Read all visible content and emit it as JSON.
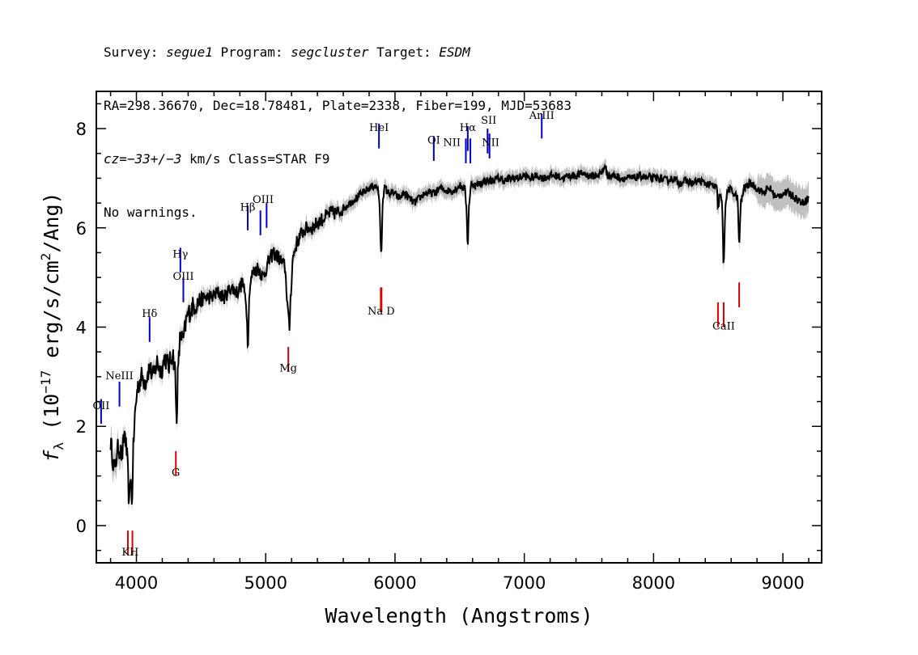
{
  "header": {
    "line1": {
      "survey_label": "Survey: ",
      "survey": "segue1",
      "program_label": " Program: ",
      "program": "segcluster",
      "target_label": " Target: ",
      "target": "ESDM"
    },
    "line2": "RA=298.36670, Dec=18.78481, Plate=2338, Fiber=199, MJD=53683",
    "line3": {
      "cz_label": "cz",
      "cz_value": "=−33+/−3",
      "rest": " km/s Class=STAR F9"
    },
    "line4": "No warnings."
  },
  "chart_data": {
    "type": "line",
    "xlabel": "Wavelength (Angstroms)",
    "ylabel_prefix": "f",
    "ylabel_sub": "λ",
    "ylabel_main": " (10",
    "ylabel_exp": "−17",
    "ylabel_mid": " erg/s/cm",
    "ylabel_exp2": "2",
    "ylabel_end": "/Ang)",
    "xlim": [
      3690,
      9300
    ],
    "ylim": [
      -0.75,
      8.75
    ],
    "x_ticks": [
      4000,
      5000,
      6000,
      7000,
      8000,
      9000
    ],
    "y_ticks": [
      0,
      2,
      4,
      6,
      8
    ],
    "x_minor_step": 200,
    "y_minor_step": 0.5,
    "colors": {
      "flux": "#000000",
      "error_band": "#c0c0c0",
      "emission_lines": "#0000cc",
      "absorption_lines": "#dd0000"
    },
    "series": [
      {
        "x": [
          3800,
          3830,
          3860,
          3890,
          3910,
          3930,
          3945,
          3955,
          3965,
          3975,
          3990,
          4010,
          4040,
          4070,
          4100,
          4130,
          4160,
          4190,
          4220,
          4250,
          4280,
          4300,
          4310,
          4320,
          4340,
          4360,
          4390,
          4430,
          4480,
          4530,
          4580,
          4630,
          4680,
          4730,
          4780,
          4820,
          4850,
          4862,
          4875,
          4900,
          4940,
          4980,
          5020,
          5060,
          5100,
          5150,
          5170,
          5183,
          5190,
          5210,
          5240,
          5280,
          5320,
          5360,
          5400,
          5450,
          5500,
          5550,
          5600,
          5650,
          5700,
          5750,
          5800,
          5840,
          5870,
          5885,
          5890,
          5896,
          5905,
          5920,
          5950,
          5990,
          6030,
          6070,
          6110,
          6150,
          6190,
          6230,
          6270,
          6310,
          6350,
          6400,
          6450,
          6500,
          6540,
          6555,
          6563,
          6570,
          6590,
          6620,
          6660,
          6700,
          6750,
          6800,
          6850,
          6900,
          6950,
          7000,
          7050,
          7100,
          7150,
          7200,
          7250,
          7300,
          7350,
          7400,
          7450,
          7500,
          7550,
          7600,
          7620,
          7650,
          7700,
          7750,
          7800,
          7850,
          7900,
          7950,
          8000,
          8050,
          8100,
          8150,
          8200,
          8250,
          8300,
          8350,
          8400,
          8450,
          8490,
          8498,
          8510,
          8530,
          8542,
          8555,
          8580,
          8620,
          8650,
          8662,
          8675,
          8700,
          8750,
          8800,
          8850,
          8900,
          8950,
          9000,
          9050,
          9100,
          9150,
          9200
        ],
        "y": [
          1.7,
          1.1,
          1.6,
          1.4,
          1.9,
          1.3,
          0.3,
          1.2,
          0.3,
          1.5,
          2.3,
          2.8,
          3.0,
          2.9,
          3.2,
          3.0,
          3.3,
          3.1,
          3.4,
          3.2,
          3.5,
          3.1,
          2.0,
          3.0,
          3.9,
          3.7,
          4.2,
          4.4,
          4.5,
          4.6,
          4.6,
          4.7,
          4.6,
          4.8,
          4.7,
          4.9,
          4.5,
          3.6,
          4.8,
          5.1,
          5.2,
          5.0,
          5.3,
          5.5,
          5.4,
          5.2,
          4.4,
          3.9,
          4.5,
          5.4,
          5.7,
          5.9,
          6.0,
          6.0,
          6.1,
          6.2,
          6.3,
          6.3,
          6.4,
          6.5,
          6.6,
          6.7,
          6.8,
          6.85,
          6.8,
          6.2,
          5.4,
          5.6,
          6.6,
          6.8,
          6.7,
          6.7,
          6.6,
          6.7,
          6.6,
          6.5,
          6.6,
          6.7,
          6.7,
          6.7,
          6.8,
          6.75,
          6.75,
          6.85,
          6.8,
          6.3,
          5.5,
          6.4,
          6.9,
          6.85,
          6.9,
          6.95,
          6.95,
          7.0,
          6.95,
          7.0,
          7.0,
          7.05,
          7.0,
          7.05,
          7.0,
          7.05,
          7.05,
          7.0,
          7.05,
          7.05,
          7.1,
          7.05,
          7.05,
          7.1,
          7.25,
          7.05,
          7.05,
          7.0,
          7.0,
          7.0,
          7.05,
          7.0,
          7.0,
          7.0,
          6.95,
          7.0,
          6.9,
          6.95,
          6.9,
          6.95,
          6.9,
          6.85,
          6.8,
          6.3,
          6.7,
          6.5,
          5.1,
          6.5,
          6.8,
          6.7,
          6.6,
          5.6,
          6.5,
          6.8,
          6.9,
          6.8,
          6.7,
          6.8,
          6.6,
          6.7,
          6.7,
          6.6,
          6.5,
          6.6
        ]
      }
    ],
    "emission_lines": [
      {
        "label": "OII",
        "x": 3727,
        "y": 2.05
      },
      {
        "label": "NeIII",
        "x": 3869,
        "y": 2.4
      },
      {
        "label": "Hδ",
        "x": 4102,
        "y": 3.7
      },
      {
        "label": "Hγ",
        "x": 4340,
        "y": 5.1
      },
      {
        "label": "OIII",
        "x": 4363,
        "y": 4.5
      },
      {
        "label": "Hβ",
        "x": 4861,
        "y": 5.95
      },
      {
        "label": "OIII",
        "x": 4959,
        "y": 5.85
      },
      {
        "label": "OIII",
        "x": 5007,
        "y": 6.0
      },
      {
        "label": "HeI",
        "x": 5876,
        "y": 7.6
      },
      {
        "label": "OI",
        "x": 6300,
        "y": 7.35
      },
      {
        "label": "NII",
        "x": 6548,
        "y": 7.3
      },
      {
        "label": "Hα",
        "x": 6563,
        "y": 7.55
      },
      {
        "label": "NII",
        "x": 6583,
        "y": 7.3
      },
      {
        "label": "SII",
        "x": 6716,
        "y": 7.5
      },
      {
        "label": "SII",
        "x": 6731,
        "y": 7.4
      },
      {
        "label": "ArIII",
        "x": 7135,
        "y": 7.8
      }
    ],
    "absorption_lines": [
      {
        "label": "K",
        "x": 3934,
        "y": -0.1
      },
      {
        "label": "H",
        "x": 3969,
        "y": -0.1
      },
      {
        "label": "G",
        "x": 4305,
        "y": 1.5
      },
      {
        "label": "Mg",
        "x": 5175,
        "y": 3.6
      },
      {
        "label": "Na",
        "x": 5890,
        "y": 4.8
      },
      {
        "label": "D",
        "x": 5896,
        "y": 4.8
      },
      {
        "label": "CaII",
        "x": 8498,
        "y": 4.5
      },
      {
        "label": "CaII",
        "x": 8542,
        "y": 4.5
      },
      {
        "label": "CaII",
        "x": 8662,
        "y": 4.9
      }
    ],
    "line_labels": [
      {
        "text": "OII",
        "x": 3727,
        "y": 2.35,
        "color": "emission"
      },
      {
        "text": "NeIII",
        "x": 3869,
        "y": 2.95,
        "color": "emission"
      },
      {
        "text": "Hδ",
        "x": 4102,
        "y": 4.2,
        "color": "emission"
      },
      {
        "text": "Hγ",
        "x": 4340,
        "y": 5.4,
        "color": "emission"
      },
      {
        "text": "OIII",
        "x": 4363,
        "y": 4.95,
        "color": "emission"
      },
      {
        "text": "Hβ",
        "x": 4861,
        "y": 6.35,
        "color": "emission"
      },
      {
        "text": "OIII",
        "x": 4980,
        "y": 6.5,
        "color": "emission"
      },
      {
        "text": "HeI",
        "x": 5876,
        "y": 7.95,
        "color": "emission"
      },
      {
        "text": "OI",
        "x": 6300,
        "y": 7.7,
        "color": "emission"
      },
      {
        "text": "NII",
        "x": 6440,
        "y": 7.65,
        "color": "emission"
      },
      {
        "text": "Hα",
        "x": 6563,
        "y": 7.95,
        "color": "emission"
      },
      {
        "text": "NII",
        "x": 6740,
        "y": 7.65,
        "color": "emission"
      },
      {
        "text": "SII",
        "x": 6725,
        "y": 8.1,
        "color": "emission"
      },
      {
        "text": "ArIII",
        "x": 7135,
        "y": 8.2,
        "color": "emission"
      },
      {
        "text": "KH",
        "x": 3952,
        "y": -0.6,
        "color": "absorption"
      },
      {
        "text": "G",
        "x": 4305,
        "y": 1.0,
        "color": "absorption"
      },
      {
        "text": "Mg",
        "x": 5175,
        "y": 3.1,
        "color": "absorption"
      },
      {
        "text": "Na  D",
        "x": 5893,
        "y": 4.25,
        "color": "absorption"
      },
      {
        "text": "CaII",
        "x": 8542,
        "y": 3.95,
        "color": "absorption"
      }
    ]
  }
}
